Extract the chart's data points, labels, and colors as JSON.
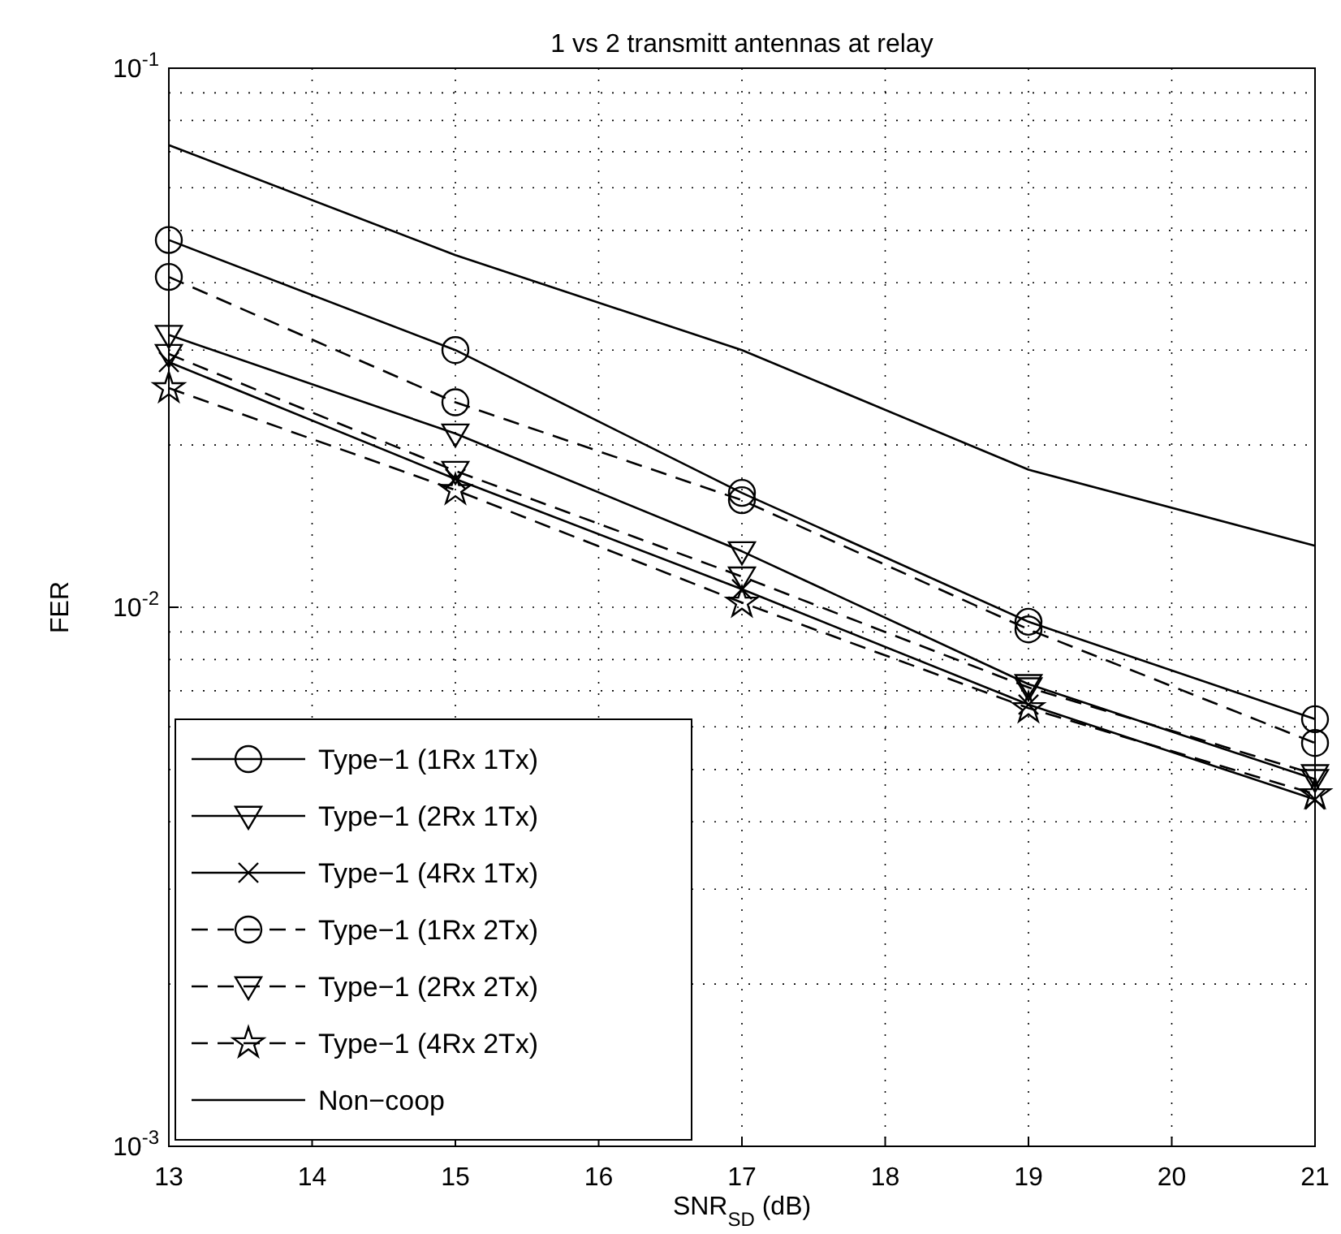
{
  "chart_data": {
    "type": "line",
    "title": "1 vs 2 transmitt antennas at relay",
    "xlabel": "SNR$_{SD}$ (dB)",
    "ylabel": "FER",
    "log": "y",
    "grid": true,
    "legend": "bottom left",
    "x": [
      13,
      15,
      17,
      19,
      21
    ],
    "xlim": [
      13,
      21
    ],
    "xticks": [
      13,
      14,
      15,
      16,
      17,
      18,
      19,
      20,
      21
    ],
    "ylim": [
      0.001,
      0.1
    ],
    "yticks": [
      {
        "value": 0.001,
        "label": "10$^{-3}$"
      },
      {
        "value": 0.01,
        "label": "10$^{-2}$"
      },
      {
        "value": 0.1,
        "label": "10$^{-1}$"
      }
    ],
    "series": [
      {
        "name": "Type−1 (1Rx 1Tx)",
        "color": "#000000",
        "marker": "circle",
        "line_style": "solid",
        "values": [
          0.048,
          0.03,
          0.0163,
          0.0094,
          0.0062
        ]
      },
      {
        "name": "Type−1 (2Rx 1Tx)",
        "color": "#000000",
        "marker": "triangle",
        "line_style": "solid",
        "values": [
          0.032,
          0.021,
          0.0127,
          0.0072,
          0.0048
        ]
      },
      {
        "name": "Type−1 (4Rx 1Tx)",
        "color": "#000000",
        "marker": "cross",
        "line_style": "solid",
        "values": [
          0.0285,
          0.0173,
          0.0108,
          0.0066,
          0.0044
        ]
      },
      {
        "name": "Type−1 (1Rx 2Tx)",
        "color": "#000000",
        "marker": "circle",
        "line_style": "dashed",
        "values": [
          0.041,
          0.024,
          0.0158,
          0.0091,
          0.0056
        ]
      },
      {
        "name": "Type−1 (2Rx 2Tx)",
        "color": "#000000",
        "marker": "triangle",
        "line_style": "dashed",
        "values": [
          0.0295,
          0.0179,
          0.0114,
          0.0071,
          0.0049
        ]
      },
      {
        "name": "Type−1 (4Rx 2Tx)",
        "color": "#000000",
        "marker": "star",
        "line_style": "dashed",
        "values": [
          0.0255,
          0.0165,
          0.0102,
          0.0065,
          0.0045
        ]
      },
      {
        "name": "Non−coop",
        "color": "#000000",
        "marker": "none",
        "line_style": "solid",
        "values": [
          0.072,
          0.045,
          0.03,
          0.018,
          0.013
        ]
      }
    ]
  }
}
